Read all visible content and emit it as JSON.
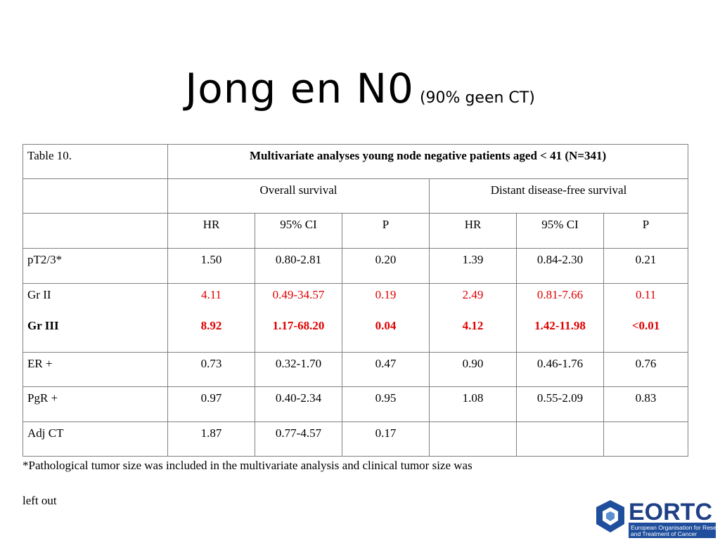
{
  "slide": {
    "title": "Jong en N0",
    "subtitle": "(90% geen CT)",
    "table": {
      "caption": "Table 10.",
      "heading": "Multivariate analyses young node negative patients aged < 41 (N=341)",
      "groups": [
        "Overall survival",
        "Distant disease-free survival"
      ],
      "columns": [
        "HR",
        "95% CI",
        "P",
        "HR",
        "95% CI",
        "P"
      ],
      "rows": [
        {
          "lines": [
            [
              "pT2/3*",
              "1.50",
              "0.80-2.81",
              "0.20",
              "1.39",
              "0.84-2.30",
              "0.21"
            ]
          ]
        },
        {
          "lines": [
            [
              "Gr II",
              "4.11",
              "0.49-34.57",
              "0.19",
              "2.49",
              "0.81-7.66",
              "0.11"
            ],
            [
              "Gr III",
              "8.92",
              "1.17-68.20",
              "0.04",
              "4.12",
              "1.42-11.98",
              "<0.01"
            ]
          ]
        },
        {
          "lines": [
            [
              "ER +",
              "0.73",
              "0.32-1.70",
              "0.47",
              "0.90",
              "0.46-1.76",
              "0.76"
            ]
          ]
        },
        {
          "lines": [
            [
              "PgR +",
              "0.97",
              "0.40-2.34",
              "0.95",
              "1.08",
              "0.55-2.09",
              "0.83"
            ]
          ]
        },
        {
          "lines": [
            [
              "Adj CT",
              "1.87",
              "0.77-4.57",
              "0.17"
            ]
          ]
        }
      ]
    },
    "footnote": [
      "*Pathological tumor size was included in the multivariate analysis and clinical tumor size was",
      "left out"
    ],
    "logo": {
      "name": "EORTC",
      "tagline": [
        "European Organisation for Research",
        "and Treatment of Cancer"
      ]
    }
  }
}
